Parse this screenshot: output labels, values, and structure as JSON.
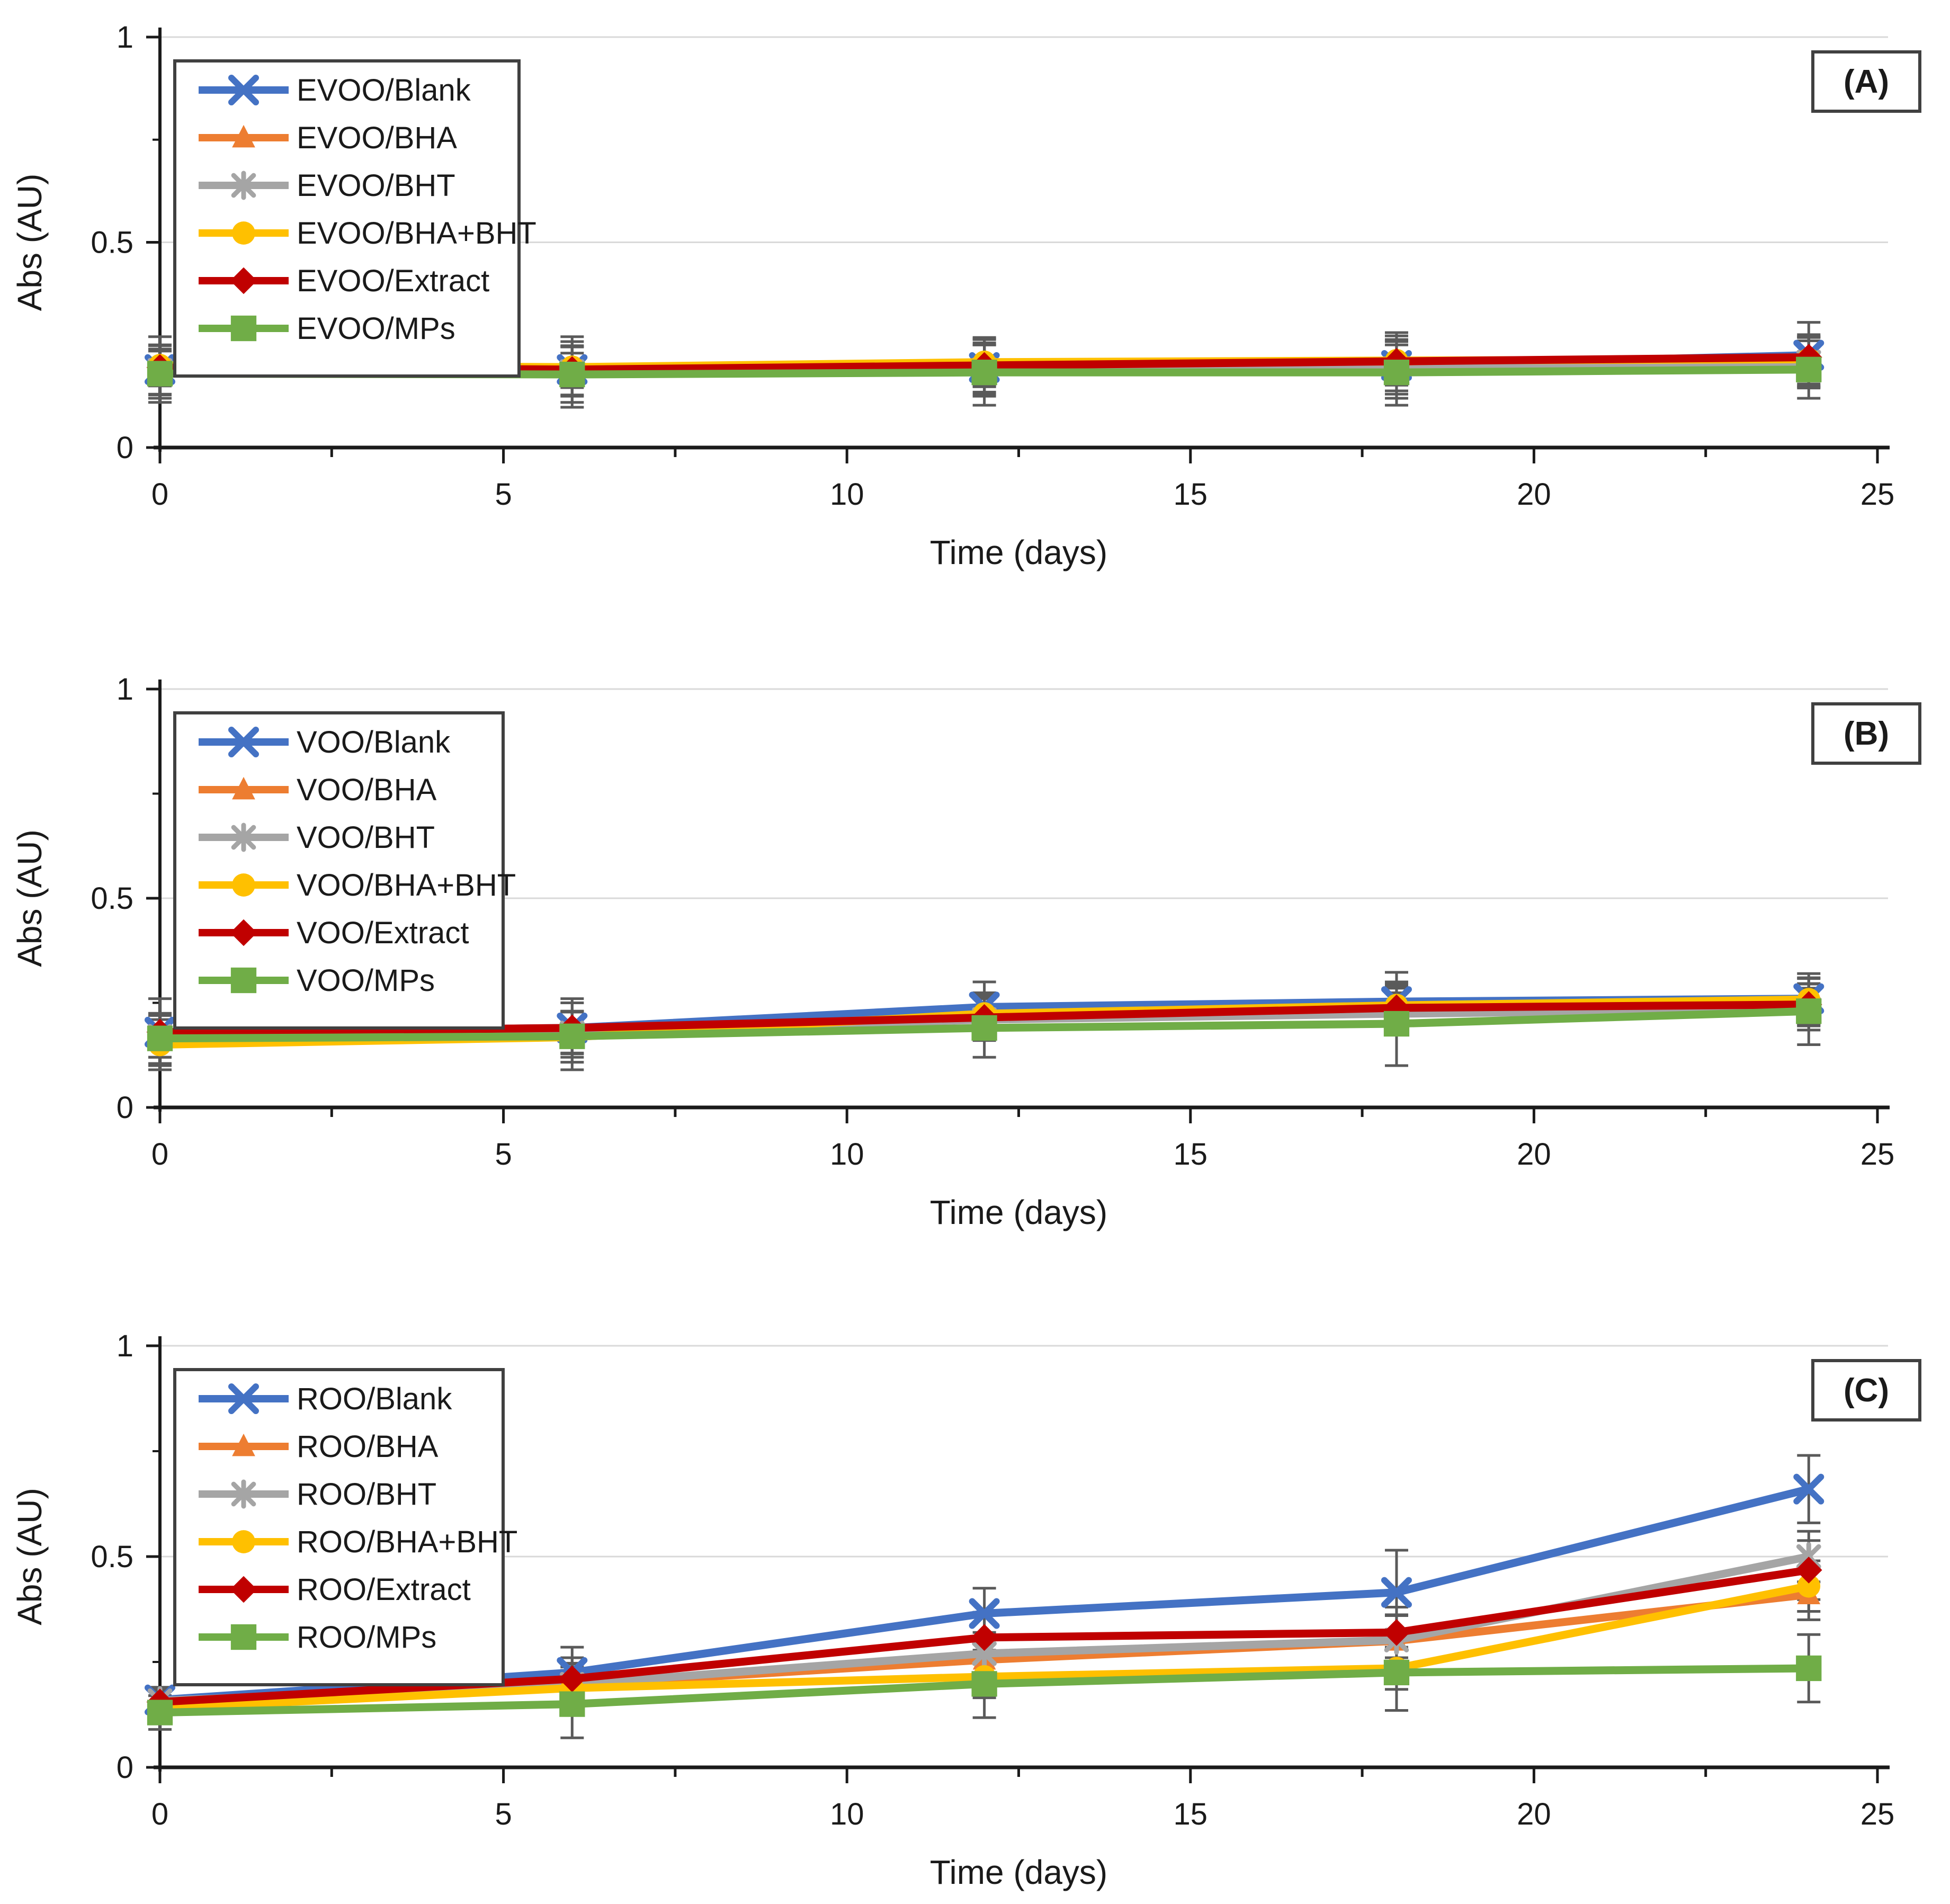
{
  "page": {
    "background": "#ffffff"
  },
  "axis_defaults": {
    "xlabel": "Time (days)",
    "ylabel": "Abs (AU)",
    "x_tick_labels": [
      "0",
      "5",
      "10",
      "15",
      "20",
      "25"
    ],
    "y_tick_labels": [
      "0",
      "0.5",
      "1"
    ]
  },
  "colors": {
    "blank": "#4472C4",
    "bha": "#ED7D31",
    "bht": "#A5A5A5",
    "bha_bht": "#FFC000",
    "extract": "#C00000",
    "mps": "#70AD47",
    "error_bar": "#5a5a5a",
    "gridline": "#D9D9D9",
    "axis_line": "#1a1a1a",
    "box_border": "#404040"
  },
  "chart_data": [
    {
      "type": "line",
      "panel_label": "(A)",
      "title": "",
      "xlabel": "Time (days)",
      "ylabel": "Abs (AU)",
      "xlim": [
        0,
        25
      ],
      "ylim": [
        0,
        1
      ],
      "x_major_ticks": [
        0,
        5,
        10,
        15,
        20,
        25
      ],
      "x_minor_step": 2.5,
      "y_major_ticks": [
        0,
        0.5,
        1
      ],
      "y_minor_ticks": [
        0.25,
        0.75
      ],
      "grid_y": [
        0.5,
        1
      ],
      "legend_position": "top-left",
      "x": [
        0,
        6,
        12,
        18,
        24
      ],
      "series": [
        {
          "name": "EVOO/Blank",
          "color": "#4472C4",
          "marker": "x-cross",
          "values": [
            0.19,
            0.19,
            0.195,
            0.2,
            0.225
          ],
          "errors": [
            0.08,
            0.08,
            0.07,
            0.08,
            0.08
          ]
        },
        {
          "name": "EVOO/BHA",
          "color": "#ED7D31",
          "marker": "triangle",
          "values": [
            0.19,
            0.188,
            0.195,
            0.198,
            0.21
          ],
          "errors": [
            0.06,
            0.06,
            0.06,
            0.06,
            0.06
          ]
        },
        {
          "name": "EVOO/BHT",
          "color": "#A5A5A5",
          "marker": "asterisk",
          "values": [
            0.188,
            0.185,
            0.19,
            0.19,
            0.208
          ],
          "errors": [
            0.06,
            0.06,
            0.06,
            0.06,
            0.06
          ]
        },
        {
          "name": "EVOO/BHA+BHT",
          "color": "#FFC000",
          "marker": "circle",
          "values": [
            0.2,
            0.196,
            0.208,
            0.212,
            0.215
          ],
          "errors": [
            0.05,
            0.05,
            0.06,
            0.06,
            0.06
          ]
        },
        {
          "name": "EVOO/Extract",
          "color": "#C00000",
          "marker": "diamond",
          "values": [
            0.195,
            0.19,
            0.2,
            0.21,
            0.22
          ],
          "errors": [
            0.04,
            0.04,
            0.05,
            0.05,
            0.05
          ]
        },
        {
          "name": "EVOO/MPs",
          "color": "#70AD47",
          "marker": "square",
          "values": [
            0.18,
            0.178,
            0.183,
            0.183,
            0.19
          ],
          "errors": [
            0.06,
            0.08,
            0.08,
            0.08,
            0.07
          ]
        }
      ]
    },
    {
      "type": "line",
      "panel_label": "(B)",
      "title": "",
      "xlabel": "Time (days)",
      "ylabel": "Abs (AU)",
      "xlim": [
        0,
        25
      ],
      "ylim": [
        0,
        1
      ],
      "x_major_ticks": [
        0,
        5,
        10,
        15,
        20,
        25
      ],
      "x_minor_step": 2.5,
      "y_major_ticks": [
        0,
        0.5,
        1
      ],
      "y_minor_ticks": [
        0.25,
        0.75
      ],
      "grid_y": [
        0.5,
        1
      ],
      "legend_position": "top-left",
      "x": [
        0,
        6,
        12,
        18,
        24
      ],
      "series": [
        {
          "name": "VOO/Blank",
          "color": "#4472C4",
          "marker": "x-cross",
          "values": [
            0.18,
            0.19,
            0.24,
            0.253,
            0.26
          ],
          "errors": [
            0.08,
            0.07,
            0.06,
            0.07,
            0.06
          ]
        },
        {
          "name": "VOO/BHA",
          "color": "#ED7D31",
          "marker": "triangle",
          "values": [
            0.17,
            0.18,
            0.22,
            0.235,
            0.245
          ],
          "errors": [
            0.05,
            0.05,
            0.05,
            0.05,
            0.05
          ]
        },
        {
          "name": "VOO/BHT",
          "color": "#A5A5A5",
          "marker": "asterisk",
          "values": [
            0.17,
            0.178,
            0.21,
            0.224,
            0.235
          ],
          "errors": [
            0.05,
            0.05,
            0.05,
            0.05,
            0.05
          ]
        },
        {
          "name": "VOO/BHA+BHT",
          "color": "#FFC000",
          "marker": "circle",
          "values": [
            0.15,
            0.168,
            0.224,
            0.244,
            0.258
          ],
          "errors": [
            0.06,
            0.06,
            0.05,
            0.05,
            0.05
          ]
        },
        {
          "name": "VOO/Extract",
          "color": "#C00000",
          "marker": "diamond",
          "values": [
            0.18,
            0.19,
            0.215,
            0.238,
            0.246
          ],
          "errors": [
            0.04,
            0.04,
            0.05,
            0.05,
            0.05
          ]
        },
        {
          "name": "VOO/MPs",
          "color": "#70AD47",
          "marker": "square",
          "values": [
            0.165,
            0.17,
            0.19,
            0.2,
            0.23
          ],
          "errors": [
            0.06,
            0.08,
            0.07,
            0.1,
            0.08
          ]
        }
      ]
    },
    {
      "type": "line",
      "panel_label": "(C)",
      "title": "",
      "xlabel": "Time (days)",
      "ylabel": "Abs (AU)",
      "xlim": [
        0,
        25
      ],
      "ylim": [
        0,
        1
      ],
      "x_major_ticks": [
        0,
        5,
        10,
        15,
        20,
        25
      ],
      "x_minor_step": 2.5,
      "y_major_ticks": [
        0,
        0.5,
        1
      ],
      "y_minor_ticks": [
        0.25,
        0.75
      ],
      "grid_y": [
        0.5,
        1
      ],
      "legend_position": "top-left",
      "x": [
        0,
        6,
        12,
        18,
        24
      ],
      "series": [
        {
          "name": "ROO/Blank",
          "color": "#4472C4",
          "marker": "x-cross",
          "values": [
            0.16,
            0.225,
            0.365,
            0.415,
            0.66
          ],
          "errors": [
            0.03,
            0.06,
            0.06,
            0.1,
            0.08
          ]
        },
        {
          "name": "ROO/BHA",
          "color": "#ED7D31",
          "marker": "triangle",
          "values": [
            0.15,
            0.195,
            0.255,
            0.3,
            0.41
          ],
          "errors": [
            0.03,
            0.05,
            0.05,
            0.06,
            0.06
          ]
        },
        {
          "name": "ROO/BHT",
          "color": "#A5A5A5",
          "marker": "asterisk",
          "values": [
            0.158,
            0.197,
            0.27,
            0.302,
            0.5
          ],
          "errors": [
            0.03,
            0.05,
            0.05,
            0.06,
            0.06
          ]
        },
        {
          "name": "ROO/BHA+BHT",
          "color": "#FFC000",
          "marker": "circle",
          "values": [
            0.14,
            0.188,
            0.215,
            0.235,
            0.43
          ],
          "errors": [
            0.03,
            0.05,
            0.05,
            0.05,
            0.06
          ]
        },
        {
          "name": "ROO/Extract",
          "color": "#C00000",
          "marker": "diamond",
          "values": [
            0.155,
            0.21,
            0.308,
            0.32,
            0.468
          ],
          "errors": [
            0.03,
            0.05,
            0.06,
            0.06,
            0.07
          ]
        },
        {
          "name": "ROO/MPs",
          "color": "#70AD47",
          "marker": "square",
          "values": [
            0.13,
            0.15,
            0.198,
            0.225,
            0.235
          ],
          "errors": [
            0.04,
            0.08,
            0.08,
            0.09,
            0.08
          ]
        }
      ]
    }
  ]
}
